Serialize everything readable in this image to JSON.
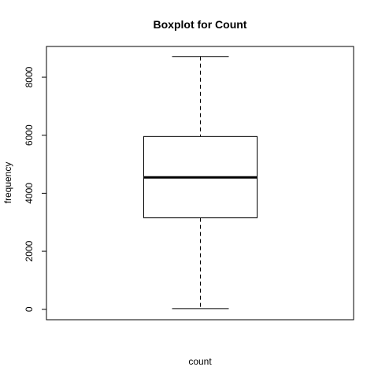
{
  "chart_data": {
    "type": "boxplot",
    "title": "Boxplot for Count",
    "xlabel": "count",
    "ylabel": "frequency",
    "ylim": [
      -360,
      9060
    ],
    "yticks": [
      0,
      2000,
      4000,
      6000,
      8000
    ],
    "ytick_labels": [
      "0",
      "2000",
      "4000",
      "6000",
      "8000"
    ],
    "grid": false,
    "series": [
      {
        "min": 22,
        "q1": 3152,
        "median": 4548,
        "q3": 5956,
        "max": 8714
      }
    ]
  }
}
